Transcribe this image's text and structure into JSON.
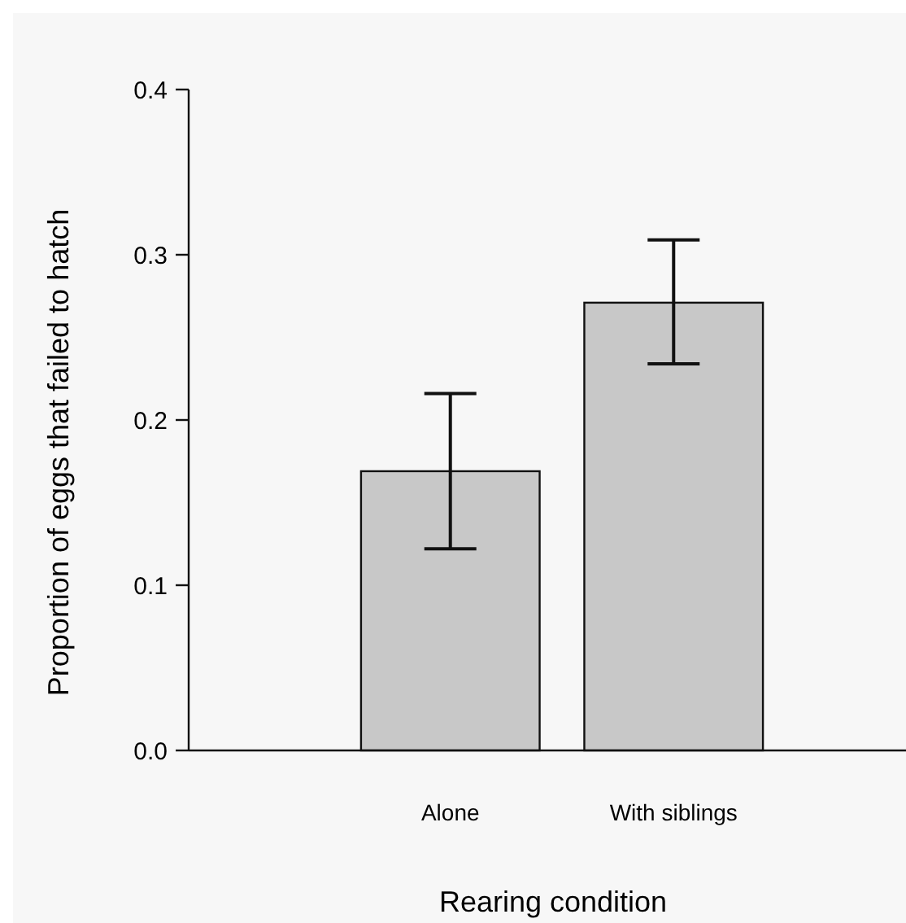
{
  "chart_data": {
    "type": "bar",
    "xlabel": "Rearing condition",
    "ylabel": "Proportion of eggs that failed to hatch",
    "categories": [
      "Alone",
      "With siblings"
    ],
    "values": [
      0.169,
      0.271
    ],
    "color": "#c8c8c8",
    "errors": [
      [
        0.122,
        0.216
      ],
      [
        0.234,
        0.309
      ]
    ],
    "ylim": [
      0,
      0.4
    ],
    "yticks": [
      {
        "value": 0,
        "label": "0.0"
      },
      0.1,
      0.2,
      0.3,
      0.4
    ]
  }
}
